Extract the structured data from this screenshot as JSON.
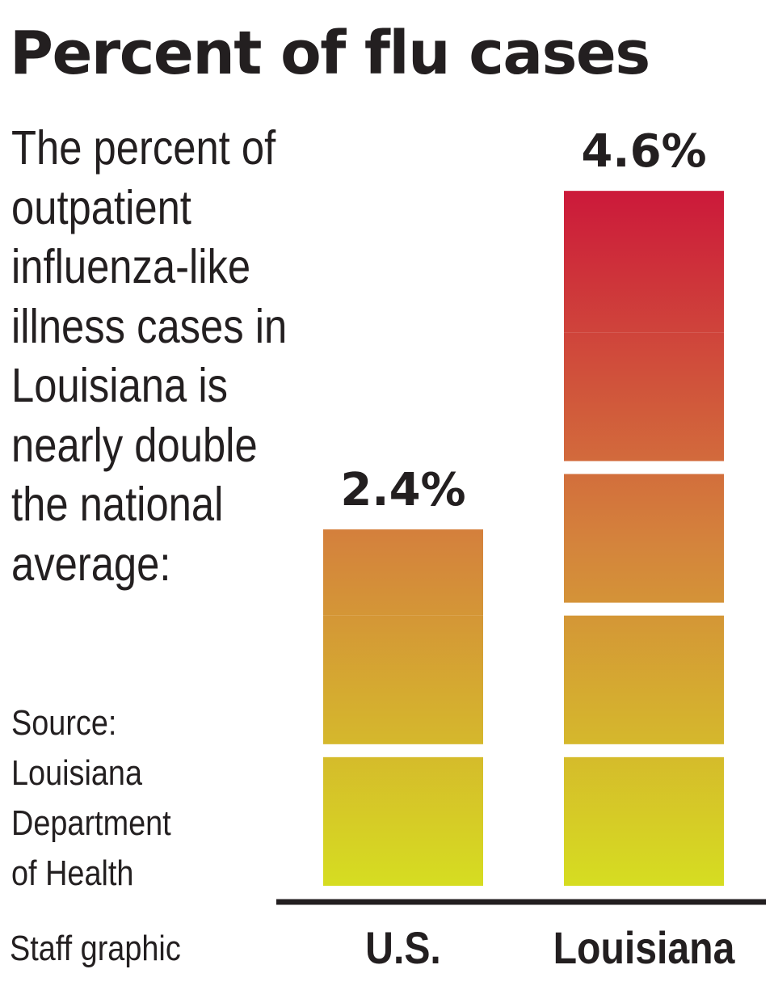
{
  "title": "Percent of flu cases",
  "description": "The percent of outpatient influenza-like illness cases in Louisiana is nearly double the national average:",
  "source_lines": [
    "Source:",
    "Louisiana",
    "Department",
    "of Health"
  ],
  "credit": "Staff graphic",
  "colors": {
    "text": "#231f20",
    "gradient_top": "#cc1a3a",
    "gradient_mid": "#d4843c",
    "gradient_bottom": "#d6e020",
    "baseline": "#231f20"
  },
  "chart_data": {
    "type": "bar",
    "categories": [
      "U.S.",
      "Louisiana"
    ],
    "values": [
      2.4,
      4.6
    ],
    "value_labels": [
      "2.4%",
      "4.6%"
    ],
    "unit": "%",
    "ylim": [
      0,
      5
    ],
    "grid": false
  }
}
